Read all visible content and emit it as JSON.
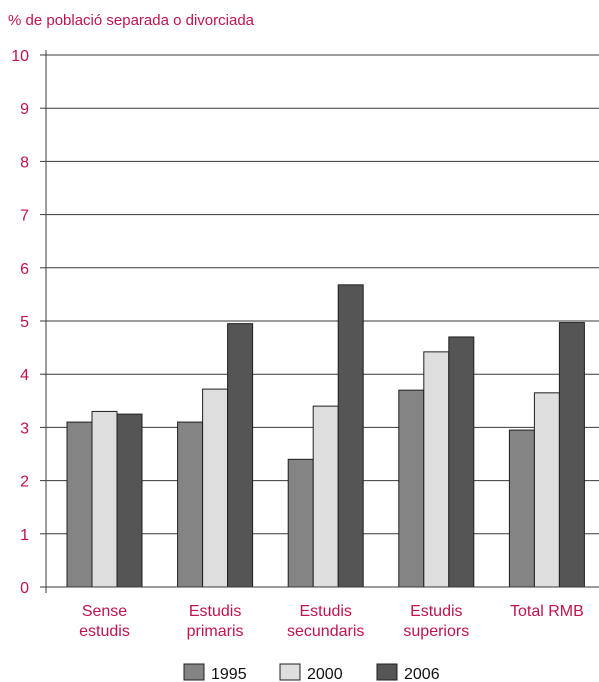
{
  "chart_data": {
    "type": "bar",
    "ylabel": "% de població separada o divorciada",
    "ylim": [
      0,
      10
    ],
    "yticks": [
      "0",
      "1",
      "2",
      "3",
      "4",
      "5",
      "6",
      "7",
      "8",
      "9",
      "10"
    ],
    "grid": true,
    "legend_position": "bottom",
    "categories": [
      [
        "Sense",
        "estudis"
      ],
      [
        "Estudis",
        "primaris"
      ],
      [
        "Estudis",
        "secundaris"
      ],
      [
        "Estudis",
        "superiors"
      ],
      [
        "Total RMB"
      ]
    ],
    "series": [
      {
        "name": "1995",
        "color": "#848484",
        "values": [
          3.1,
          3.1,
          2.4,
          3.7,
          2.95
        ]
      },
      {
        "name": "2000",
        "color": "#dedede",
        "values": [
          3.3,
          3.72,
          3.4,
          4.42,
          3.65
        ]
      },
      {
        "name": "2006",
        "color": "#555555",
        "values": [
          3.25,
          4.95,
          5.68,
          4.7,
          4.97
        ]
      }
    ]
  }
}
